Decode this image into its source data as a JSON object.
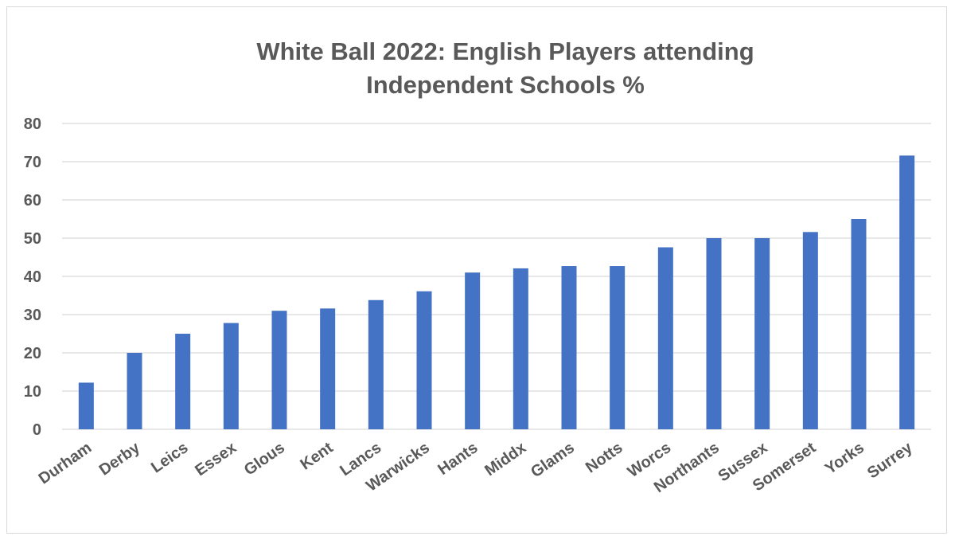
{
  "chart_data": {
    "type": "bar",
    "title_line1": "White Ball 2022:  English Players attending",
    "title_line2": "Independent Schools %",
    "categories": [
      "Durham",
      "Derby",
      "Leics",
      "Essex",
      "Glous",
      "Kent",
      "Lancs",
      "Warwicks",
      "Hants",
      "Middx",
      "Glams",
      "Notts",
      "Worcs",
      "Northants",
      "Sussex",
      "Somerset",
      "Yorks",
      "Surrey"
    ],
    "values": [
      12.2,
      20,
      25,
      27.8,
      31,
      31.6,
      33.8,
      36.1,
      41,
      42.1,
      42.7,
      42.7,
      47.6,
      50,
      50,
      51.6,
      55,
      71.6
    ],
    "ylim": [
      0,
      80
    ],
    "yticks": [
      "0",
      "10",
      "20",
      "30",
      "40",
      "50",
      "60",
      "70",
      "80"
    ],
    "grid": true,
    "legend": "none",
    "bar_color": "#4472C4",
    "grid_color": "#d9d9d9"
  }
}
